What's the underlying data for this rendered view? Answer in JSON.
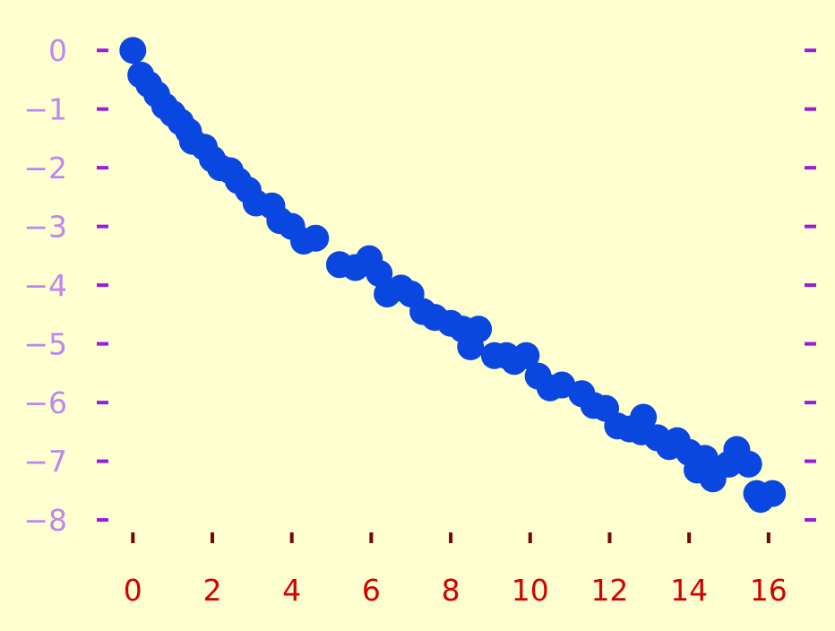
{
  "colors": {
    "background": "#ffffd0",
    "marker": "#0a46e0",
    "x_tick": "#6e0a0a",
    "x_label": "#d40000",
    "y_tick": "#9a1be0",
    "y_label": "#bf86ef"
  },
  "chart_data": {
    "type": "scatter",
    "title": "",
    "xlabel": "",
    "ylabel": "",
    "xlim": [
      -0.3,
      16.5
    ],
    "ylim": [
      -8.35,
      0.4
    ],
    "grid": false,
    "legend": "none",
    "x_ticks": [
      0,
      2,
      4,
      6,
      8,
      10,
      12,
      14,
      16
    ],
    "y_ticks": [
      0,
      -1,
      -2,
      -3,
      -4,
      -5,
      -6,
      -7,
      -8
    ],
    "x_tick_labels": [
      "0",
      "2",
      "4",
      "6",
      "8",
      "10",
      "12",
      "14",
      "16"
    ],
    "y_tick_labels": [
      "0",
      "−1",
      "−2",
      "−3",
      "−4",
      "−5",
      "−6",
      "−7",
      "−8"
    ],
    "y_ticks_mirrored_right": true,
    "series": [
      {
        "name": "",
        "marker": "circle",
        "points": [
          [
            0.0,
            0.0
          ],
          [
            0.2,
            -0.42
          ],
          [
            0.4,
            -0.58
          ],
          [
            0.6,
            -0.75
          ],
          [
            0.8,
            -0.95
          ],
          [
            1.0,
            -1.08
          ],
          [
            1.2,
            -1.22
          ],
          [
            1.4,
            -1.38
          ],
          [
            1.5,
            -1.55
          ],
          [
            1.8,
            -1.65
          ],
          [
            2.0,
            -1.85
          ],
          [
            2.2,
            -2.0
          ],
          [
            2.45,
            -2.05
          ],
          [
            2.65,
            -2.22
          ],
          [
            2.9,
            -2.38
          ],
          [
            3.1,
            -2.6
          ],
          [
            3.5,
            -2.65
          ],
          [
            3.7,
            -2.9
          ],
          [
            4.0,
            -3.0
          ],
          [
            4.3,
            -3.25
          ],
          [
            4.6,
            -3.2
          ],
          [
            5.2,
            -3.65
          ],
          [
            5.6,
            -3.7
          ],
          [
            5.95,
            -3.55
          ],
          [
            6.2,
            -3.8
          ],
          [
            6.4,
            -4.15
          ],
          [
            6.75,
            -4.05
          ],
          [
            7.0,
            -4.15
          ],
          [
            7.3,
            -4.45
          ],
          [
            7.6,
            -4.55
          ],
          [
            8.0,
            -4.65
          ],
          [
            8.3,
            -4.75
          ],
          [
            8.5,
            -5.05
          ],
          [
            8.7,
            -4.75
          ],
          [
            9.1,
            -5.2
          ],
          [
            9.4,
            -5.2
          ],
          [
            9.6,
            -5.3
          ],
          [
            9.9,
            -5.2
          ],
          [
            10.2,
            -5.55
          ],
          [
            10.5,
            -5.75
          ],
          [
            10.8,
            -5.7
          ],
          [
            11.3,
            -5.85
          ],
          [
            11.6,
            -6.05
          ],
          [
            11.9,
            -6.1
          ],
          [
            12.2,
            -6.4
          ],
          [
            12.5,
            -6.45
          ],
          [
            12.8,
            -6.5
          ],
          [
            12.85,
            -6.25
          ],
          [
            13.2,
            -6.6
          ],
          [
            13.5,
            -6.75
          ],
          [
            13.7,
            -6.65
          ],
          [
            14.0,
            -6.85
          ],
          [
            14.2,
            -7.15
          ],
          [
            14.4,
            -6.95
          ],
          [
            14.6,
            -7.3
          ],
          [
            15.0,
            -7.05
          ],
          [
            15.2,
            -6.8
          ],
          [
            15.5,
            -7.05
          ],
          [
            15.7,
            -7.55
          ],
          [
            15.8,
            -7.65
          ],
          [
            16.1,
            -7.55
          ]
        ]
      }
    ]
  }
}
